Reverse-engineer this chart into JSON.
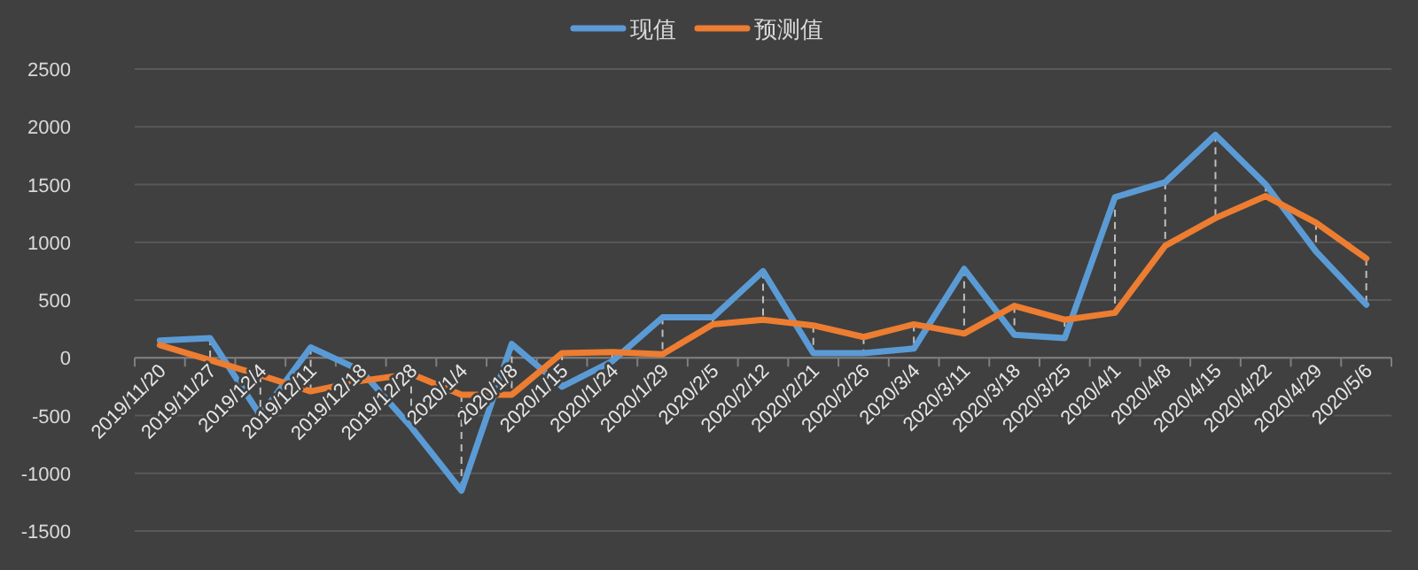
{
  "chart_data": {
    "type": "line",
    "categories": [
      "2019/11/20",
      "2019/11/27",
      "2019/12/4",
      "2019/12/11",
      "2019/12/18",
      "2019/12/28",
      "2020/1/4",
      "2020/1/8",
      "2020/1/15",
      "2020/1/24",
      "2020/1/29",
      "2020/2/5",
      "2020/2/12",
      "2020/2/21",
      "2020/2/26",
      "2020/3/4",
      "2020/3/11",
      "2020/3/18",
      "2020/3/25",
      "2020/4/1",
      "2020/4/8",
      "2020/4/15",
      "2020/4/22",
      "2020/4/29",
      "2020/5/6"
    ],
    "series": [
      {
        "name": "现值",
        "color": "#5b9bd5",
        "values": [
          150,
          170,
          -500,
          90,
          -110,
          -600,
          -1150,
          120,
          -250,
          -30,
          350,
          350,
          750,
          40,
          40,
          80,
          770,
          200,
          170,
          1390,
          1520,
          1930,
          1500,
          920,
          460
        ]
      },
      {
        "name": "预测值",
        "color": "#ed7d31",
        "values": [
          110,
          -20,
          -150,
          -290,
          -200,
          -140,
          -320,
          -320,
          40,
          50,
          30,
          290,
          330,
          280,
          180,
          290,
          210,
          450,
          330,
          390,
          970,
          1210,
          1400,
          1170,
          860
        ]
      }
    ],
    "ylim": [
      -1500,
      2500
    ],
    "yticks": [
      -1500,
      -1000,
      -500,
      0,
      500,
      1000,
      1500,
      2000,
      2500
    ],
    "grid": "y",
    "legend": "top",
    "marker": "none",
    "line_style": "solid"
  }
}
